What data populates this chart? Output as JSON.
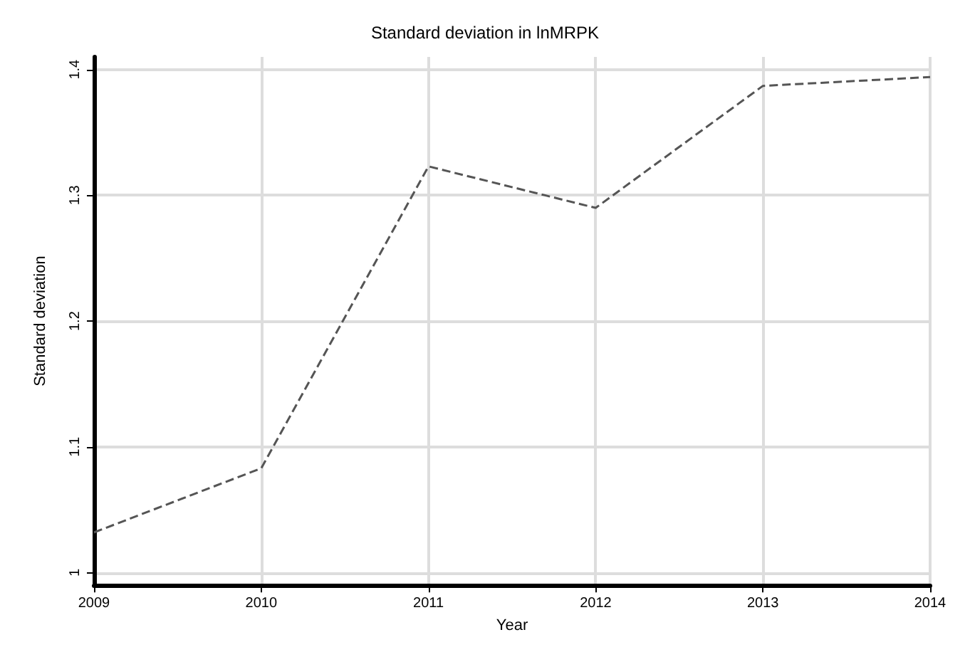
{
  "chart_data": {
    "type": "line",
    "title": "Standard deviation in lnMRPK",
    "xlabel": "Year",
    "ylabel": "Standard deviation",
    "x": [
      2009,
      2010,
      2011,
      2012,
      2013,
      2014
    ],
    "series": [
      {
        "color": "#555555",
        "values": [
          1.032,
          1.083,
          1.323,
          1.29,
          1.387,
          1.394
        ]
      }
    ],
    "xlim": [
      2009,
      2014
    ],
    "xticks": [
      2009,
      2010,
      2011,
      2012,
      2013,
      2014
    ],
    "ylim": [
      0.99,
      1.41
    ],
    "yticks": [
      1,
      1.1,
      1.2,
      1.3,
      1.4
    ],
    "grid": true,
    "line_style": "dashed",
    "marker": "none"
  }
}
